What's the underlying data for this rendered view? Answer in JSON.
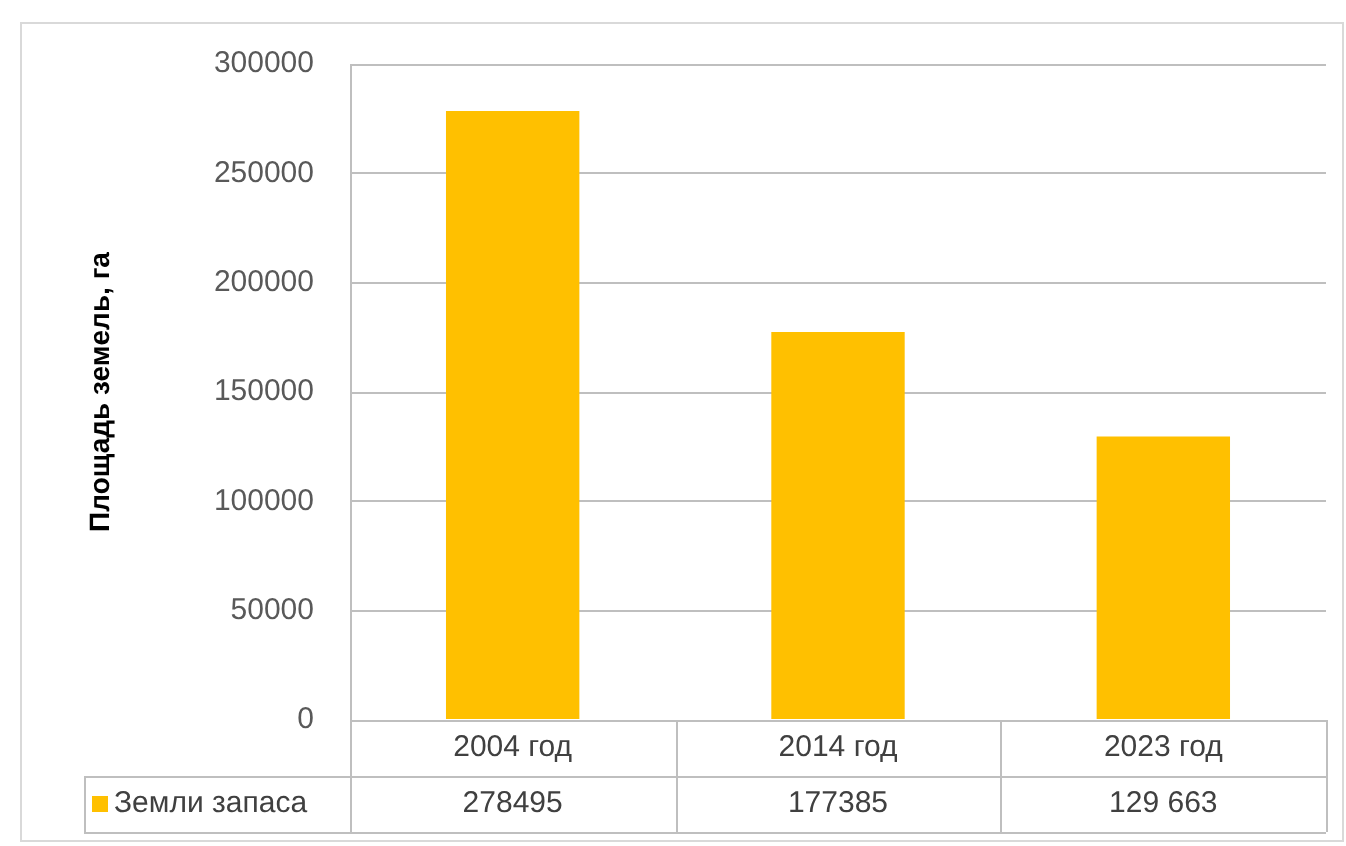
{
  "chart_data": {
    "type": "bar",
    "categories": [
      "2004 год",
      "2014 год",
      "2023 год"
    ],
    "series": [
      {
        "name": "Земли запаса",
        "color": "#ffc000",
        "values": [
          278495,
          177385,
          129663
        ],
        "value_labels": [
          "278495",
          "177385",
          "129 663"
        ]
      }
    ],
    "ylabel": "Площадь земель, га",
    "ylim": [
      0,
      300000
    ],
    "yticks": [
      0,
      50000,
      100000,
      150000,
      200000,
      250000,
      300000
    ],
    "grid": "y",
    "legend": "bottom left"
  }
}
